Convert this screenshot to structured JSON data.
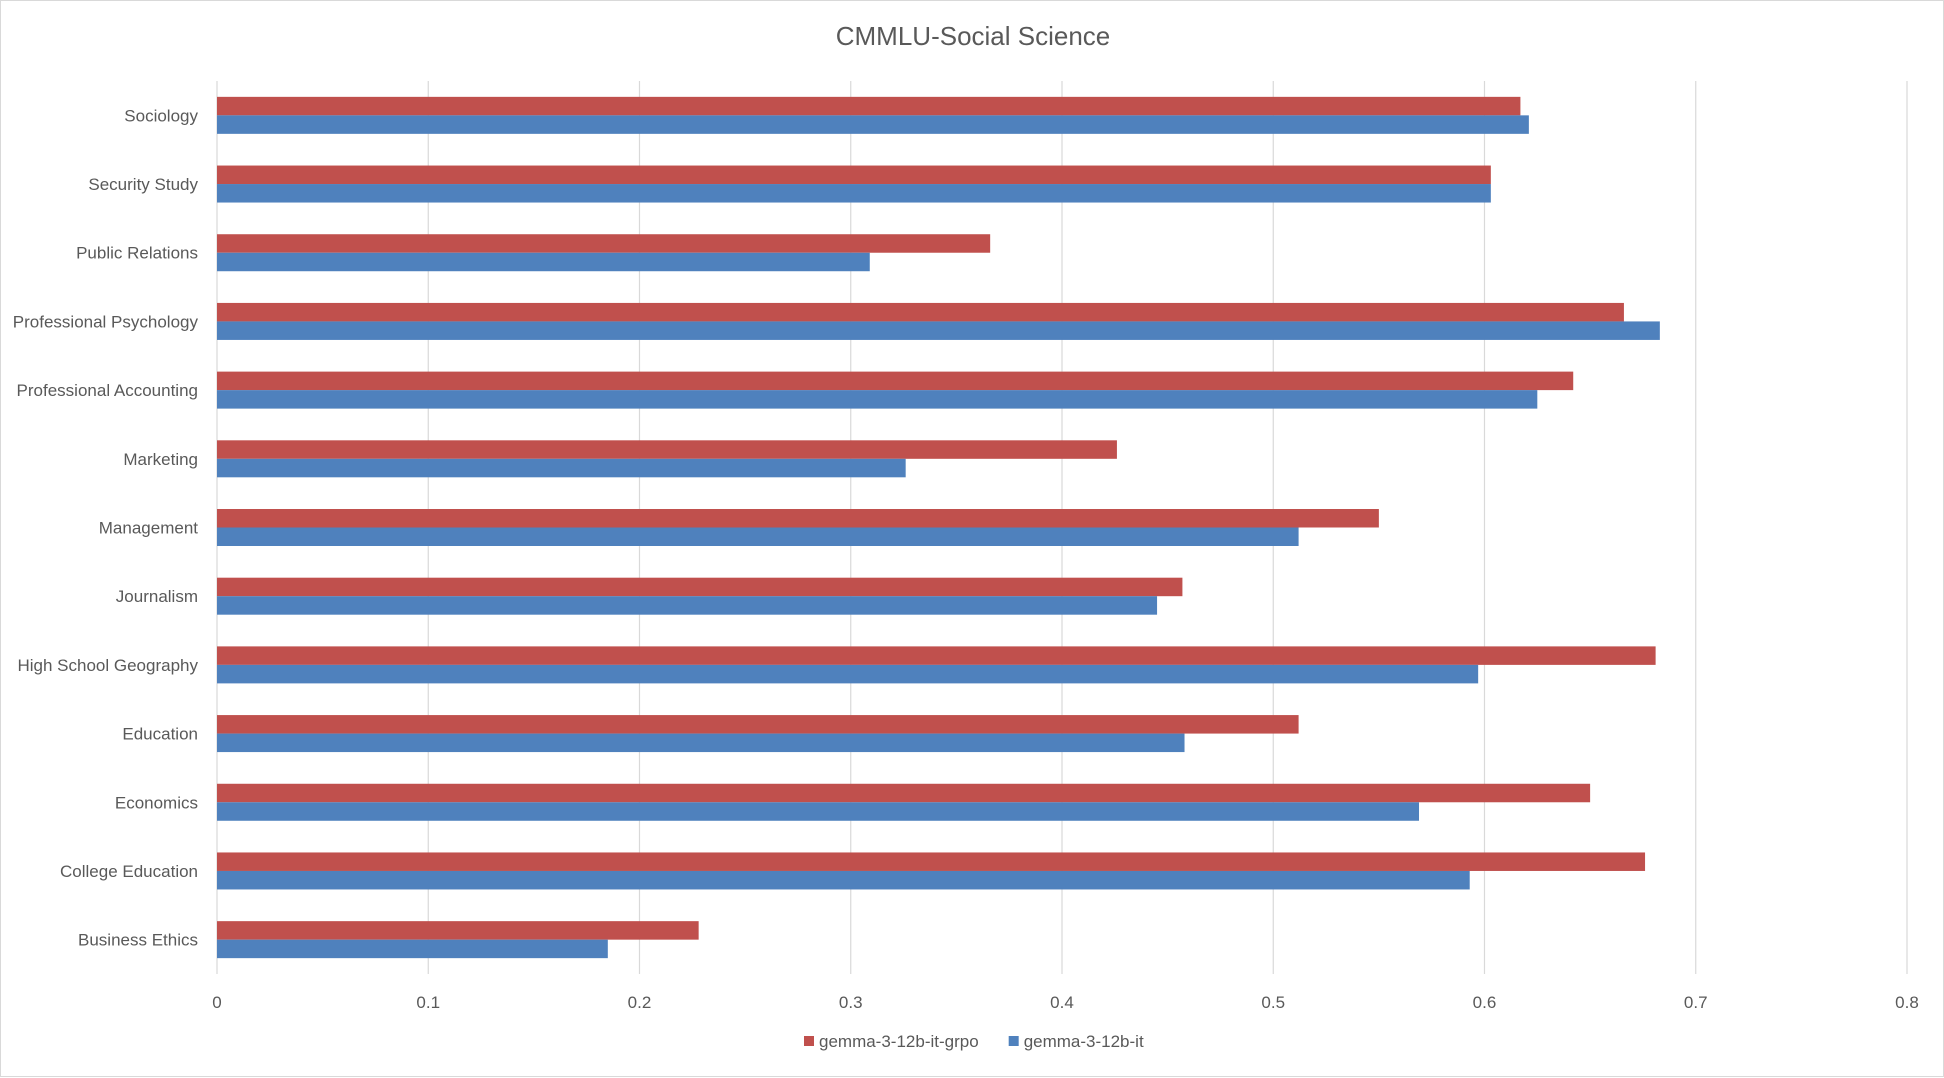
{
  "chart_data": {
    "type": "bar",
    "orientation": "horizontal",
    "title": "CMMLU-Social Science",
    "xlabel": "",
    "ylabel": "",
    "xlim": [
      0,
      0.8
    ],
    "x_ticks": [
      0,
      0.1,
      0.2,
      0.3,
      0.4,
      0.5,
      0.6,
      0.7,
      0.8
    ],
    "x_tick_labels": [
      "0",
      "0.1",
      "0.2",
      "0.3",
      "0.4",
      "0.5",
      "0.6",
      "0.7",
      "0.8"
    ],
    "grid": true,
    "legend_position": "bottom",
    "categories": [
      "Sociology",
      "Security Study",
      "Public Relations",
      "Professional Psychology",
      "Professional Accounting",
      "Marketing",
      "Management",
      "Journalism",
      "High School Geography",
      "Education",
      "Economics",
      "College Education",
      "Business Ethics"
    ],
    "series": [
      {
        "name": "gemma-3-12b-it-grpo",
        "color": "#c0504d",
        "values": [
          0.617,
          0.603,
          0.366,
          0.666,
          0.642,
          0.426,
          0.55,
          0.457,
          0.681,
          0.512,
          0.65,
          0.676,
          0.228
        ]
      },
      {
        "name": "gemma-3-12b-it",
        "color": "#4f81bd",
        "values": [
          0.621,
          0.603,
          0.309,
          0.683,
          0.625,
          0.326,
          0.512,
          0.445,
          0.597,
          0.458,
          0.569,
          0.593,
          0.185
        ]
      }
    ]
  }
}
